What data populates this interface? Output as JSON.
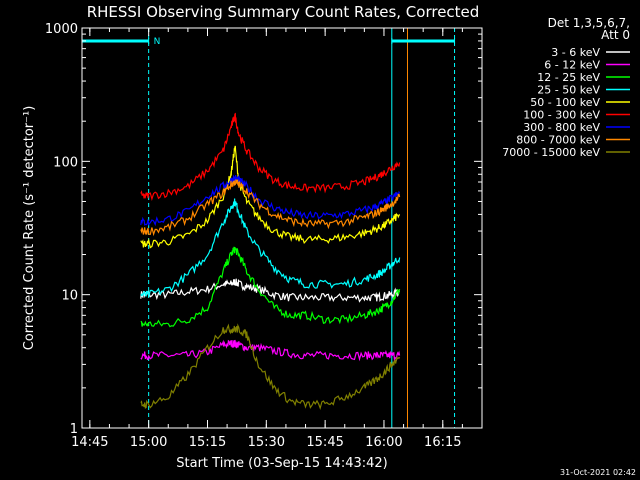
{
  "chart_data": {
    "type": "line",
    "title": "RHESSI Observing Summary Count Rates, Corrected",
    "xlabel": "Start Time (03-Sep-15 14:43:42)",
    "ylabel": "Corrected Count Rate (s⁻¹ detector⁻¹)",
    "y_scale": "log",
    "ylim": [
      1,
      1000
    ],
    "xlim": [
      "14:43",
      "16:25"
    ],
    "x_ticks": [
      "14:45",
      "15:00",
      "15:15",
      "15:30",
      "15:45",
      "16:00",
      "16:15"
    ],
    "y_ticks": [
      "1",
      "10",
      "100",
      "1000"
    ],
    "timestamp": "31-Oct-2021 02:42",
    "legend": {
      "header_line1": "Det 1,3,5,6,7,",
      "header_line2": "Att 0",
      "position": "right"
    },
    "x": [
      "14:58",
      "15:00",
      "15:05",
      "15:10",
      "15:15",
      "15:19",
      "15:21",
      "15:22",
      "15:23",
      "15:25",
      "15:28",
      "15:32",
      "15:36",
      "15:40",
      "15:45",
      "15:50",
      "15:55",
      "15:58",
      "16:00",
      "16:02",
      "16:04"
    ],
    "series": [
      {
        "name": "3 - 6 keV",
        "color": "#ffffff",
        "values": [
          10,
          10,
          10,
          10.5,
          11,
          12,
          12,
          12.5,
          12,
          11.5,
          11,
          10,
          9.5,
          9.5,
          9.5,
          9.5,
          9.5,
          9.5,
          9.8,
          10,
          10.5
        ]
      },
      {
        "name": "6 - 12 keV",
        "color": "#ff00ff",
        "values": [
          3.5,
          3.5,
          3.5,
          3.5,
          3.7,
          4.2,
          4.3,
          4.3,
          4.2,
          4,
          4,
          3.8,
          3.6,
          3.5,
          3.5,
          3.5,
          3.5,
          3.5,
          3.5,
          3.5,
          3.5
        ]
      },
      {
        "name": "12 - 25 keV",
        "color": "#00ff00",
        "values": [
          6,
          6,
          6,
          6.5,
          8,
          15,
          20,
          22,
          20,
          15,
          11,
          8,
          7,
          7,
          6.5,
          6.5,
          7,
          7.5,
          8,
          9,
          11
        ]
      },
      {
        "name": "25 - 50 keV",
        "color": "#00ffff",
        "values": [
          10,
          10,
          11,
          14,
          20,
          35,
          45,
          50,
          42,
          30,
          22,
          16,
          13,
          12,
          12,
          12,
          13,
          14,
          15,
          17,
          19
        ]
      },
      {
        "name": "50 - 100 keV",
        "color": "#ffff00",
        "values": [
          24,
          24,
          25,
          28,
          36,
          55,
          80,
          130,
          70,
          50,
          38,
          30,
          27,
          26,
          26,
          27,
          29,
          31,
          33,
          36,
          40
        ]
      },
      {
        "name": "100 - 300 keV",
        "color": "#ff0000",
        "values": [
          55,
          55,
          58,
          65,
          85,
          120,
          180,
          220,
          160,
          120,
          90,
          72,
          65,
          63,
          63,
          65,
          70,
          76,
          82,
          90,
          98
        ]
      },
      {
        "name": "300 - 800 keV",
        "color": "#0000ff",
        "values": [
          35,
          35,
          37,
          42,
          55,
          65,
          72,
          75,
          72,
          65,
          52,
          45,
          41,
          39,
          39,
          40,
          43,
          46,
          49,
          53,
          58
        ]
      },
      {
        "name": "800 - 7000 keV",
        "color": "#ff8800",
        "values": [
          30,
          30,
          32,
          37,
          48,
          58,
          67,
          70,
          67,
          60,
          48,
          40,
          36,
          34,
          34,
          35,
          38,
          41,
          44,
          48,
          54
        ]
      },
      {
        "name": "7000 - 15000 keV",
        "color": "#808000",
        "values": [
          1.5,
          1.5,
          1.7,
          2.5,
          4,
          5.5,
          5.5,
          5.5,
          5.5,
          5,
          3,
          2,
          1.6,
          1.5,
          1.5,
          1.7,
          2,
          2.3,
          2.6,
          3,
          3.4
        ]
      }
    ],
    "vertical_markers": [
      {
        "time": "14:43",
        "style": "solid",
        "color": "#00ffff"
      },
      {
        "time": "15:00",
        "style": "dashed",
        "color": "#00ffff"
      },
      {
        "time": "16:02",
        "style": "solid",
        "color": "#00ffff"
      },
      {
        "time": "16:18",
        "style": "dashed",
        "color": "#00ffff"
      },
      {
        "time": "16:06",
        "style": "solid",
        "color": "#ff8800"
      }
    ],
    "night_bars": [
      {
        "start": "14:43",
        "end": "15:00",
        "label": "N"
      },
      {
        "start": "16:02",
        "end": "16:18",
        "label": ""
      }
    ]
  }
}
